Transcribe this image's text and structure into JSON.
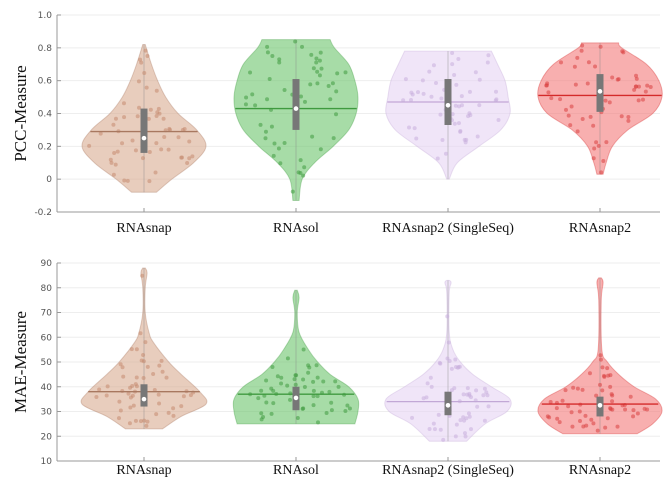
{
  "chart_data": [
    {
      "type": "violin",
      "ylabel": "PCC-Measure",
      "ylim": [
        -0.2,
        1.0
      ],
      "yticks": [
        -0.2,
        0,
        0.2,
        0.4,
        0.6,
        0.8,
        1.0
      ],
      "ytick_labels": [
        "-0.2",
        "0",
        "0.2",
        "0.4",
        "0.6",
        "0.8",
        "1.0"
      ],
      "grid": true,
      "categories": [
        "RNAsnap",
        "RNAsol",
        "RNAsnap2 (SingleSeq)",
        "RNAsnap2"
      ],
      "series": [
        {
          "name": "RNAsnap",
          "color": "#d9ab91",
          "line": "#a87860",
          "dot": "#c48a70",
          "min": -0.08,
          "max": 0.82,
          "mean": 0.29,
          "median": 0.25,
          "q1": 0.16,
          "q3": 0.43,
          "density": [
            [
              -0.08,
              0.2
            ],
            [
              0,
              0.45
            ],
            [
              0.1,
              0.8
            ],
            [
              0.2,
              1
            ],
            [
              0.3,
              0.85
            ],
            [
              0.4,
              0.55
            ],
            [
              0.5,
              0.35
            ],
            [
              0.6,
              0.22
            ],
            [
              0.7,
              0.12
            ],
            [
              0.82,
              0.02
            ]
          ]
        },
        {
          "name": "RNAsol",
          "color": "#6cc46c",
          "line": "#3f9a3f",
          "dot": "#3f9a3f",
          "min": -0.13,
          "max": 0.85,
          "mean": 0.43,
          "median": 0.43,
          "q1": 0.3,
          "q3": 0.61,
          "density": [
            [
              -0.13,
              0.05
            ],
            [
              0,
              0.1
            ],
            [
              0.1,
              0.3
            ],
            [
              0.2,
              0.6
            ],
            [
              0.3,
              0.85
            ],
            [
              0.4,
              0.97
            ],
            [
              0.5,
              1
            ],
            [
              0.6,
              0.95
            ],
            [
              0.7,
              0.85
            ],
            [
              0.8,
              0.62
            ],
            [
              0.85,
              0.55
            ]
          ]
        },
        {
          "name": "RNAsnap2 (SingleSeq)",
          "color": "#e6d3f3",
          "line": "#c2a8d6",
          "dot": "#c9afdc",
          "min": 0.0,
          "max": 0.78,
          "mean": 0.47,
          "median": 0.45,
          "q1": 0.33,
          "q3": 0.61,
          "density": [
            [
              0,
              0.02
            ],
            [
              0.1,
              0.15
            ],
            [
              0.2,
              0.5
            ],
            [
              0.3,
              0.85
            ],
            [
              0.4,
              1
            ],
            [
              0.5,
              0.97
            ],
            [
              0.6,
              0.92
            ],
            [
              0.7,
              0.8
            ],
            [
              0.78,
              0.7
            ]
          ]
        },
        {
          "name": "RNAsnap2",
          "color": "#f47a7a",
          "line": "#d42a2a",
          "dot": "#d84040",
          "min": 0.03,
          "max": 0.83,
          "mean": 0.51,
          "median": 0.535,
          "q1": 0.41,
          "q3": 0.64,
          "density": [
            [
              0.03,
              0.05
            ],
            [
              0.1,
              0.1
            ],
            [
              0.2,
              0.2
            ],
            [
              0.3,
              0.45
            ],
            [
              0.4,
              0.85
            ],
            [
              0.5,
              1
            ],
            [
              0.6,
              0.95
            ],
            [
              0.7,
              0.75
            ],
            [
              0.8,
              0.35
            ],
            [
              0.83,
              0.3
            ]
          ]
        }
      ]
    },
    {
      "type": "violin",
      "ylabel": "MAE-Measure",
      "ylim": [
        10,
        90
      ],
      "yticks": [
        10,
        20,
        30,
        40,
        50,
        60,
        70,
        80,
        90
      ],
      "ytick_labels": [
        "10",
        "20",
        "30",
        "40",
        "50",
        "60",
        "70",
        "80",
        "90"
      ],
      "grid": true,
      "categories": [
        "RNAsnap",
        "RNAsol",
        "RNAsnap2 (SingleSeq)",
        "RNAsnap2"
      ],
      "series": [
        {
          "name": "RNAsnap",
          "color": "#d9ab91",
          "line": "#a87860",
          "dot": "#c48a70",
          "min": 23,
          "max": 88,
          "mean": 38,
          "median": 35,
          "q1": 32,
          "q3": 41,
          "density": [
            [
              23,
              0.3
            ],
            [
              28,
              0.6
            ],
            [
              33,
              1
            ],
            [
              38,
              0.9
            ],
            [
              45,
              0.6
            ],
            [
              50,
              0.4
            ],
            [
              58,
              0.15
            ],
            [
              62,
              0.08
            ],
            [
              70,
              0.02
            ],
            [
              80,
              0.02
            ],
            [
              86,
              0.05
            ],
            [
              88,
              0.02
            ]
          ]
        },
        {
          "name": "RNAsol",
          "color": "#6cc46c",
          "line": "#3f9a3f",
          "dot": "#3f9a3f",
          "min": 25,
          "max": 79,
          "mean": 37,
          "median": 35.5,
          "q1": 30.5,
          "q3": 40,
          "density": [
            [
              25,
              0.95
            ],
            [
              30,
              1
            ],
            [
              35,
              1
            ],
            [
              40,
              0.85
            ],
            [
              45,
              0.55
            ],
            [
              50,
              0.35
            ],
            [
              55,
              0.2
            ],
            [
              62,
              0.05
            ],
            [
              70,
              0.02
            ],
            [
              76,
              0.05
            ],
            [
              79,
              0.02
            ]
          ]
        },
        {
          "name": "RNAsnap2 (SingleSeq)",
          "color": "#e6d3f3",
          "line": "#c2a8d6",
          "dot": "#c9afdc",
          "min": 18,
          "max": 83,
          "mean": 34,
          "median": 32.5,
          "q1": 28.5,
          "q3": 38,
          "density": [
            [
              18,
              0.3
            ],
            [
              25,
              0.6
            ],
            [
              30,
              0.95
            ],
            [
              35,
              1
            ],
            [
              40,
              0.7
            ],
            [
              45,
              0.4
            ],
            [
              50,
              0.2
            ],
            [
              55,
              0.08
            ],
            [
              62,
              0.02
            ],
            [
              78,
              0.02
            ],
            [
              82,
              0.05
            ],
            [
              83,
              0.02
            ]
          ]
        },
        {
          "name": "RNAsnap2",
          "color": "#f47a7a",
          "line": "#d42a2a",
          "dot": "#d84040",
          "min": 21,
          "max": 84,
          "mean": 33,
          "median": 32.5,
          "q1": 28,
          "q3": 36,
          "density": [
            [
              21,
              0.6
            ],
            [
              25,
              0.85
            ],
            [
              30,
              1
            ],
            [
              35,
              0.9
            ],
            [
              40,
              0.55
            ],
            [
              45,
              0.3
            ],
            [
              50,
              0.12
            ],
            [
              55,
              0.03
            ],
            [
              75,
              0.02
            ],
            [
              82,
              0.05
            ],
            [
              84,
              0.02
            ]
          ]
        }
      ]
    }
  ]
}
